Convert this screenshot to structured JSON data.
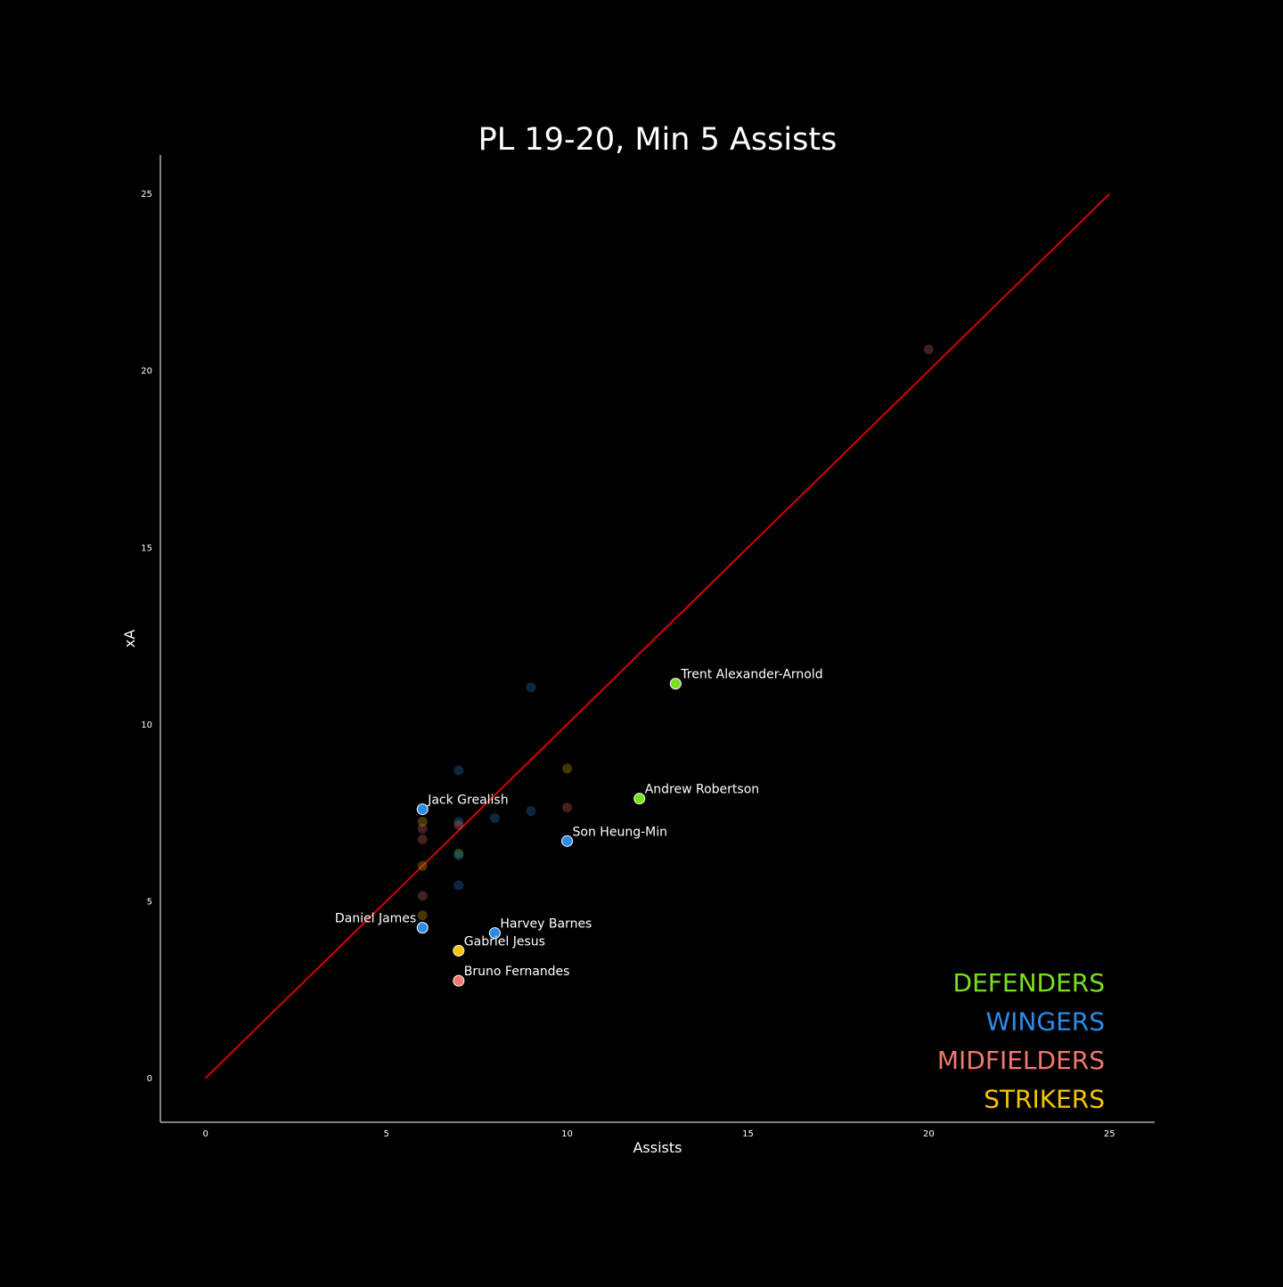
{
  "chart_data": {
    "type": "scatter",
    "title": "PL 19-20, Min 5 Assists",
    "xlabel": "Assists",
    "ylabel": "xA",
    "xlim": [
      -1.25,
      26.25
    ],
    "ylim": [
      -1.25,
      26.1
    ],
    "xticks": [
      0,
      5,
      10,
      15,
      20,
      25
    ],
    "yticks": [
      0,
      5,
      10,
      15,
      20,
      25
    ],
    "reference_line": {
      "from": [
        0,
        0
      ],
      "to": [
        25,
        25
      ],
      "color": "#d40000"
    },
    "legend": {
      "placement": "bottom-right",
      "entries": [
        {
          "label": "DEFENDERS",
          "color": "#7ae01c"
        },
        {
          "label": "WINGERS",
          "color": "#2b8ce8"
        },
        {
          "label": "MIDFIELDERS",
          "color": "#f07870"
        },
        {
          "label": "STRIKERS",
          "color": "#f5c400"
        }
      ]
    },
    "highlighted": [
      {
        "name": "Trent Alexander-Arnold",
        "group": "DEFENDERS",
        "x": 13,
        "y": 11.15,
        "label_side": "right"
      },
      {
        "name": "Andrew Robertson",
        "group": "DEFENDERS",
        "x": 12,
        "y": 7.9,
        "label_side": "right"
      },
      {
        "name": "Jack Grealish",
        "group": "WINGERS",
        "x": 6,
        "y": 7.6,
        "label_side": "right"
      },
      {
        "name": "Son Heung-Min",
        "group": "WINGERS",
        "x": 10,
        "y": 6.7,
        "label_side": "right"
      },
      {
        "name": "Daniel James",
        "group": "WINGERS",
        "x": 6,
        "y": 4.25,
        "label_side": "left"
      },
      {
        "name": "Harvey Barnes",
        "group": "WINGERS",
        "x": 8,
        "y": 4.1,
        "label_side": "right"
      },
      {
        "name": "Gabriel Jesus",
        "group": "STRIKERS",
        "x": 7,
        "y": 3.6,
        "label_side": "right"
      },
      {
        "name": "Bruno Fernandes",
        "group": "MIDFIELDERS",
        "x": 7,
        "y": 2.75,
        "label_side": "right"
      }
    ],
    "background_points": [
      {
        "group": "MIDFIELDERS",
        "x": 20,
        "y": 20.6
      },
      {
        "group": "WINGERS",
        "x": 9,
        "y": 11.05
      },
      {
        "group": "WINGERS",
        "x": 7,
        "y": 8.7
      },
      {
        "group": "STRIKERS",
        "x": 10,
        "y": 8.75
      },
      {
        "group": "MIDFIELDERS",
        "x": 10,
        "y": 7.65
      },
      {
        "group": "WINGERS",
        "x": 9,
        "y": 7.55
      },
      {
        "group": "WINGERS",
        "x": 8,
        "y": 7.35
      },
      {
        "group": "WINGERS",
        "x": 7,
        "y": 7.25
      },
      {
        "group": "MIDFIELDERS",
        "x": 7,
        "y": 7.15
      },
      {
        "group": "STRIKERS",
        "x": 6,
        "y": 7.25
      },
      {
        "group": "MIDFIELDERS",
        "x": 6,
        "y": 7.05
      },
      {
        "group": "MIDFIELDERS",
        "x": 6,
        "y": 6.75
      },
      {
        "group": "DEFENDERS",
        "x": 7,
        "y": 6.35
      },
      {
        "group": "WINGERS",
        "x": 7,
        "y": 6.3
      },
      {
        "group": "STRIKERS",
        "x": 6,
        "y": 6.0
      },
      {
        "group": "WINGERS",
        "x": 7,
        "y": 5.45
      },
      {
        "group": "MIDFIELDERS",
        "x": 6,
        "y": 5.15
      },
      {
        "group": "STRIKERS",
        "x": 6,
        "y": 4.6
      }
    ]
  }
}
